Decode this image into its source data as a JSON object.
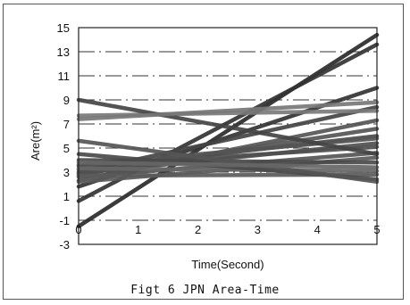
{
  "caption": "Figt 6  JPN Area-Time",
  "chart_data": {
    "type": "line",
    "title": "",
    "xlabel": "Time(Second)",
    "ylabel": "Are(m²)",
    "xlim": [
      0,
      5
    ],
    "ylim": [
      -3,
      15
    ],
    "x_ticks": [
      0,
      1,
      2,
      3,
      4,
      5
    ],
    "y_ticks": [
      -3,
      -1,
      1,
      3,
      5,
      7,
      9,
      11,
      13,
      15
    ],
    "grid": "horizontal dashed",
    "legend": "none",
    "x": [
      0,
      5
    ],
    "series": [
      {
        "values": [
          -1.5,
          14.4
        ],
        "color": "#2a2a2a"
      },
      {
        "values": [
          0.6,
          13.6
        ],
        "color": "#333333"
      },
      {
        "values": [
          1.8,
          10.0
        ],
        "color": "#333333"
      },
      {
        "values": [
          3.0,
          8.4
        ],
        "color": "#444444"
      },
      {
        "values": [
          2.3,
          7.3
        ],
        "color": "#555555"
      },
      {
        "values": [
          2.8,
          6.6
        ],
        "color": "#555555"
      },
      {
        "values": [
          3.2,
          6.0
        ],
        "color": "#4a4a4a"
      },
      {
        "values": [
          3.6,
          5.8
        ],
        "color": "#555555"
      },
      {
        "values": [
          2.9,
          5.4
        ],
        "color": "#505050"
      },
      {
        "values": [
          3.5,
          5.1
        ],
        "color": "#4f4f4f"
      },
      {
        "values": [
          2.6,
          4.6
        ],
        "color": "#555555"
      },
      {
        "values": [
          2.2,
          4.2
        ],
        "color": "#5a5a5a"
      },
      {
        "values": [
          4.0,
          3.8
        ],
        "color": "#4a4a4a"
      },
      {
        "values": [
          3.3,
          3.1
        ],
        "color": "#666666"
      },
      {
        "values": [
          2.7,
          2.8
        ],
        "color": "#5a5a5a"
      },
      {
        "values": [
          4.5,
          2.4
        ],
        "color": "#4a4a4a"
      },
      {
        "values": [
          5.6,
          2.2
        ],
        "color": "#555555"
      },
      {
        "values": [
          3.8,
          3.4
        ],
        "color": "#666666"
      },
      {
        "values": [
          7.7,
          8.1
        ],
        "color": "#7a7a7a"
      },
      {
        "values": [
          9.0,
          4.5
        ],
        "color": "#444444"
      },
      {
        "values": [
          7.4,
          8.8
        ],
        "color": "#777777"
      }
    ]
  }
}
